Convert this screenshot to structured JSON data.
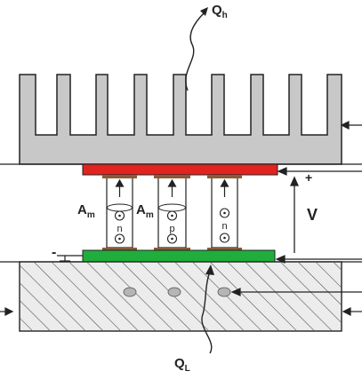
{
  "labels": {
    "q_hot": "Q",
    "q_hot_sub": "h",
    "q_cold": "Q",
    "q_cold_sub": "L",
    "area_left": "A",
    "area_left_sub": "m",
    "area_mid": "A",
    "area_mid_sub": "m",
    "voltage": "V",
    "plus": "+",
    "minus": "-"
  },
  "legs": [
    {
      "type": "n"
    },
    {
      "type": "p"
    },
    {
      "type": "n"
    }
  ],
  "colors": {
    "heat_sink": "#c8c8c8",
    "hot_plate": "#e1241f",
    "cold_plate": "#1fae3c",
    "cold_block": "#ececec",
    "hatch": "#444444",
    "stroke": "#222222"
  }
}
